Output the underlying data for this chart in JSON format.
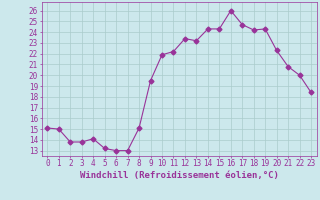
{
  "x": [
    0,
    1,
    2,
    3,
    4,
    5,
    6,
    7,
    8,
    9,
    10,
    11,
    12,
    13,
    14,
    15,
    16,
    17,
    18,
    19,
    20,
    21,
    22,
    23
  ],
  "y": [
    15.1,
    15.0,
    13.8,
    13.8,
    14.1,
    13.2,
    13.0,
    13.0,
    15.1,
    19.5,
    21.9,
    22.2,
    23.4,
    23.2,
    24.3,
    24.3,
    26.0,
    24.7,
    24.2,
    24.3,
    22.3,
    20.8,
    20.0,
    18.4
  ],
  "line_color": "#993399",
  "marker": "D",
  "markersize": 2.5,
  "linewidth": 0.8,
  "xlabel": "Windchill (Refroidissement éolien,°C)",
  "xlabel_color": "#993399",
  "xlabel_fontsize": 6.5,
  "xtick_labels": [
    "0",
    "1",
    "2",
    "3",
    "4",
    "5",
    "6",
    "7",
    "8",
    "9",
    "10",
    "11",
    "12",
    "13",
    "14",
    "15",
    "16",
    "17",
    "18",
    "19",
    "20",
    "21",
    "22",
    "23"
  ],
  "ytick_labels": [
    "13",
    "14",
    "15",
    "16",
    "17",
    "18",
    "19",
    "20",
    "21",
    "22",
    "23",
    "24",
    "25",
    "26"
  ],
  "ylim": [
    12.5,
    26.8
  ],
  "xlim": [
    -0.5,
    23.5
  ],
  "background_color": "#cce8ec",
  "grid_color": "#aacccc",
  "tick_color": "#993399",
  "tick_fontsize": 5.5
}
